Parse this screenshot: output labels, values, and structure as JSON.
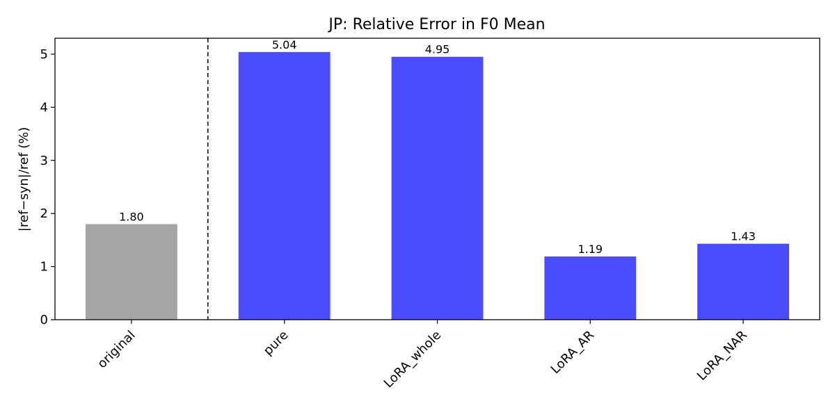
{
  "chart_data": {
    "type": "bar",
    "title": "JP: Relative Error in F0 Mean",
    "xlabel": "",
    "ylabel": "|ref−syn|/ref (%)",
    "categories": [
      "original",
      "pure",
      "LoRA_whole",
      "LoRA_AR",
      "LoRA_NAR"
    ],
    "values": [
      1.8,
      5.04,
      4.95,
      1.19,
      1.43
    ],
    "value_labels": [
      "1.80",
      "5.04",
      "4.95",
      "1.19",
      "1.43"
    ],
    "bar_colors": [
      "#a6a6a6",
      "#4b4bff",
      "#4b4bff",
      "#4b4bff",
      "#4b4bff"
    ],
    "ylim": [
      0,
      5.3
    ],
    "yticks": [
      0,
      1,
      2,
      3,
      4,
      5
    ],
    "ytick_labels": [
      "0",
      "1",
      "2",
      "3",
      "4",
      "5"
    ],
    "separator_after_category": "original",
    "separator_style": "dashed",
    "grid": false,
    "legend": "none"
  }
}
